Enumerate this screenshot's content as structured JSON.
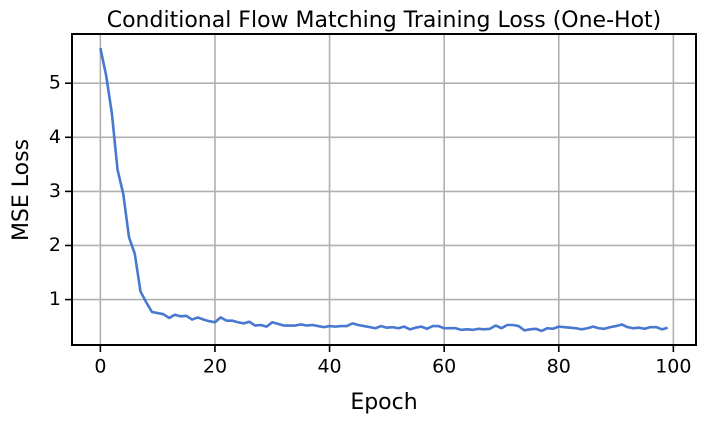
{
  "chart_data": {
    "type": "line",
    "title": "Conditional Flow Matching Training Loss (One-Hot)",
    "x_label": "Epoch",
    "y_label": "MSE Loss",
    "x": [
      0,
      1,
      2,
      3,
      4,
      5,
      6,
      7,
      8,
      9,
      10,
      11,
      12,
      13,
      14,
      15,
      16,
      17,
      18,
      19,
      20,
      21,
      22,
      23,
      24,
      25,
      26,
      27,
      28,
      29,
      30,
      31,
      32,
      33,
      34,
      35,
      36,
      37,
      38,
      39,
      40,
      41,
      42,
      43,
      44,
      45,
      46,
      47,
      48,
      49,
      50,
      51,
      52,
      53,
      54,
      55,
      56,
      57,
      58,
      59,
      60,
      61,
      62,
      63,
      64,
      65,
      66,
      67,
      68,
      69,
      70,
      71,
      72,
      73,
      74,
      75,
      76,
      77,
      78,
      79,
      80,
      81,
      82,
      83,
      84,
      85,
      86,
      87,
      88,
      89,
      90,
      91,
      92,
      93,
      94,
      95,
      96,
      97,
      98,
      99
    ],
    "series": [
      {
        "name": "loss",
        "color": "#4878d0",
        "values": [
          5.65,
          5.15,
          4.45,
          3.4,
          2.95,
          2.15,
          1.85,
          1.15,
          0.95,
          0.77,
          0.75,
          0.73,
          0.66,
          0.72,
          0.69,
          0.7,
          0.63,
          0.67,
          0.63,
          0.6,
          0.58,
          0.67,
          0.61,
          0.61,
          0.58,
          0.56,
          0.59,
          0.52,
          0.53,
          0.5,
          0.58,
          0.55,
          0.52,
          0.52,
          0.52,
          0.54,
          0.52,
          0.53,
          0.51,
          0.49,
          0.51,
          0.5,
          0.51,
          0.51,
          0.56,
          0.53,
          0.51,
          0.49,
          0.47,
          0.51,
          0.48,
          0.49,
          0.47,
          0.5,
          0.45,
          0.48,
          0.5,
          0.46,
          0.51,
          0.51,
          0.47,
          0.47,
          0.47,
          0.44,
          0.45,
          0.44,
          0.46,
          0.45,
          0.46,
          0.52,
          0.47,
          0.53,
          0.53,
          0.51,
          0.43,
          0.45,
          0.46,
          0.42,
          0.47,
          0.46,
          0.5,
          0.49,
          0.48,
          0.47,
          0.45,
          0.47,
          0.5,
          0.47,
          0.46,
          0.49,
          0.51,
          0.54,
          0.49,
          0.47,
          0.48,
          0.46,
          0.49,
          0.49,
          0.45,
          0.48
        ]
      }
    ],
    "xlim": [
      -4.95,
      103.95
    ],
    "xticks": [
      0,
      20,
      40,
      60,
      80,
      100
    ],
    "ylim": [
      0.16,
      5.91
    ],
    "yticks": [
      1,
      2,
      3,
      4,
      5
    ],
    "grid": true
  }
}
